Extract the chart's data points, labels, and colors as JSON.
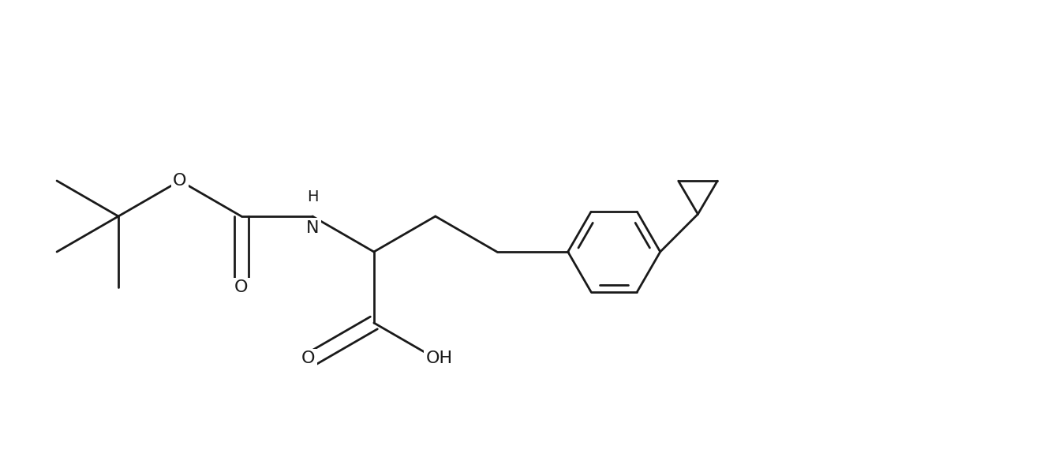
{
  "background_color": "#ffffff",
  "line_color": "#1a1a1a",
  "line_width": 2.0,
  "font_size": 15,
  "figsize": [
    13.37,
    5.84
  ],
  "dpi": 100,
  "xlim": [
    0.0,
    13.37
  ],
  "ylim": [
    0.0,
    5.84
  ]
}
